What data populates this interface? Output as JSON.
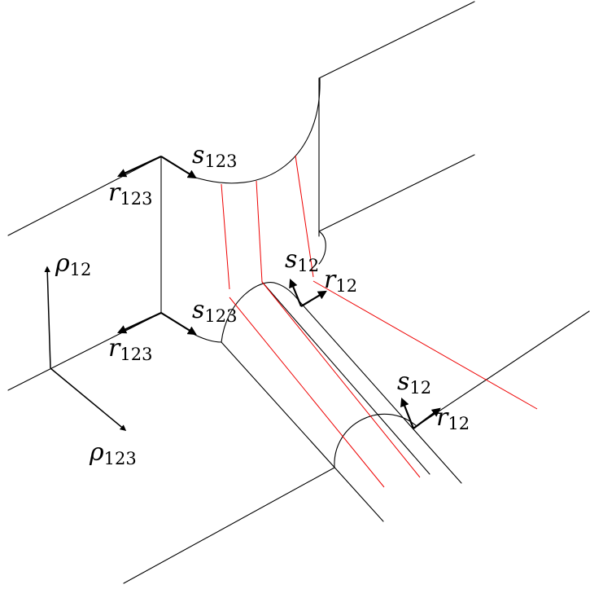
{
  "labels": {
    "s123_top": {
      "sym": "s",
      "sub": "123"
    },
    "r123_top": {
      "sym": "r",
      "sub": "123"
    },
    "s123_bottom": {
      "sym": "s",
      "sub": "123"
    },
    "r123_bottom": {
      "sym": "r",
      "sub": "123"
    },
    "s12_upper": {
      "sym": "s",
      "sub": "12"
    },
    "r12_upper": {
      "sym": "r",
      "sub": "12"
    },
    "s12_lower": {
      "sym": "s",
      "sub": "12"
    },
    "r12_lower": {
      "sym": "r",
      "sub": "12"
    },
    "rho12": {
      "sym": "ρ",
      "sub": "12"
    },
    "rho123": {
      "sym": "ρ",
      "sub": "123"
    }
  },
  "colors": {
    "outline": "#000000",
    "highlight": "#ee0000",
    "background": "#ffffff"
  }
}
